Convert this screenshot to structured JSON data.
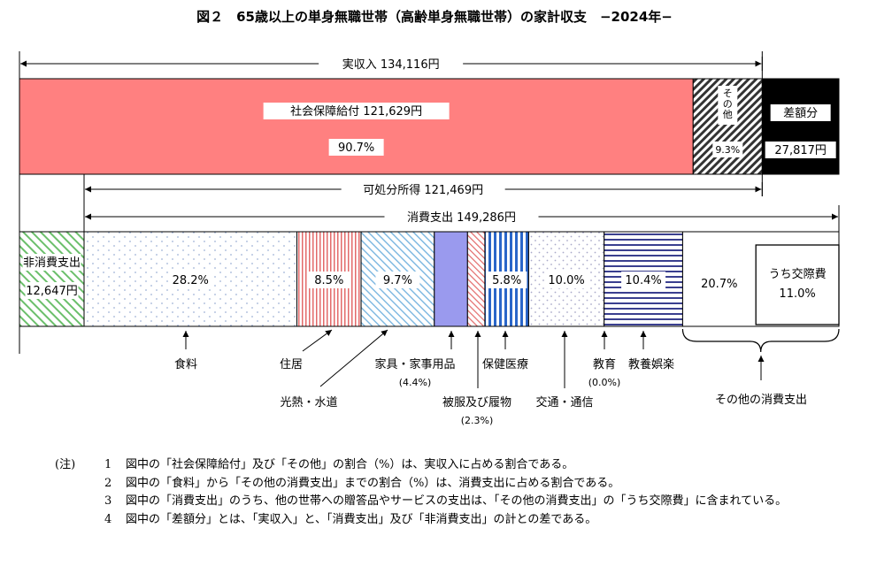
{
  "title": "図２　65歳以上の単身無職世帯（高齢単身無職世帯）の家計収支　−2024年−",
  "chart_data": {
    "type": "bar",
    "income": {
      "label": "実収入",
      "value": "134,116円",
      "segments": [
        {
          "name": "社会保障給付",
          "value": "121,629円",
          "pct": "90.7%",
          "share": 90.7,
          "color": "#ff8080"
        },
        {
          "name": "その他",
          "pct": "9.3%",
          "share": 9.3
        }
      ],
      "deficit": {
        "name": "差額分",
        "value": "27,817円"
      }
    },
    "disposable": {
      "label": "可処分所得",
      "value": "121,469円"
    },
    "consumption": {
      "label": "消費支出",
      "value": "149,286円"
    },
    "non_consumption": {
      "name": "非消費支出",
      "value": "12,647円"
    },
    "expenditure": [
      {
        "name": "食料",
        "pct": "28.2%",
        "share": 28.2,
        "pattern": "dots"
      },
      {
        "name": "住居",
        "pct": "8.5%",
        "share": 8.5,
        "pattern": "redv"
      },
      {
        "name": "光熱・水道",
        "pct": "9.7%",
        "share": 9.7,
        "pattern": "bluediag"
      },
      {
        "name": "家具・家事用品",
        "pct": "(4.4%)",
        "share": 4.4,
        "pattern": "purple"
      },
      {
        "name": "被服及び履物",
        "pct": "(2.3%)",
        "share": 2.3,
        "pattern": "redstripe"
      },
      {
        "name": "保健医療",
        "pct": "5.8%",
        "share": 5.8,
        "pattern": "bluev"
      },
      {
        "name": "交通・通信",
        "pct": "10.0%",
        "share": 10.0,
        "pattern": "dots2"
      },
      {
        "name": "教育",
        "pct": "(0.0%)",
        "share": 0.0,
        "pattern": "none"
      },
      {
        "name": "教養娯楽",
        "pct": "10.4%",
        "share": 10.4,
        "pattern": "navyh"
      },
      {
        "name": "その他の消費支出",
        "pct": "20.7%",
        "share": 20.7,
        "pattern": "white",
        "sub": {
          "name": "うち交際費",
          "pct": "11.0%",
          "share": 11.0
        }
      }
    ]
  },
  "notes": {
    "lead": "(注)",
    "items": [
      {
        "num": "1",
        "text": "図中の「社会保障給付」及び「その他」の割合（%）は、実収入に占める割合である。"
      },
      {
        "num": "2",
        "text": "図中の「食料」から「その他の消費支出」までの割合（%）は、消費支出に占める割合である。"
      },
      {
        "num": "3",
        "text": "図中の「消費支出」のうち、他の世帯への贈答品やサービスの支出は、「その他の消費支出」の「うち交際費」に含まれている。"
      },
      {
        "num": "4",
        "text": "図中の「差額分」とは、「実収入」と、「消費支出」及び「非消費支出」の計との差である。"
      }
    ]
  }
}
